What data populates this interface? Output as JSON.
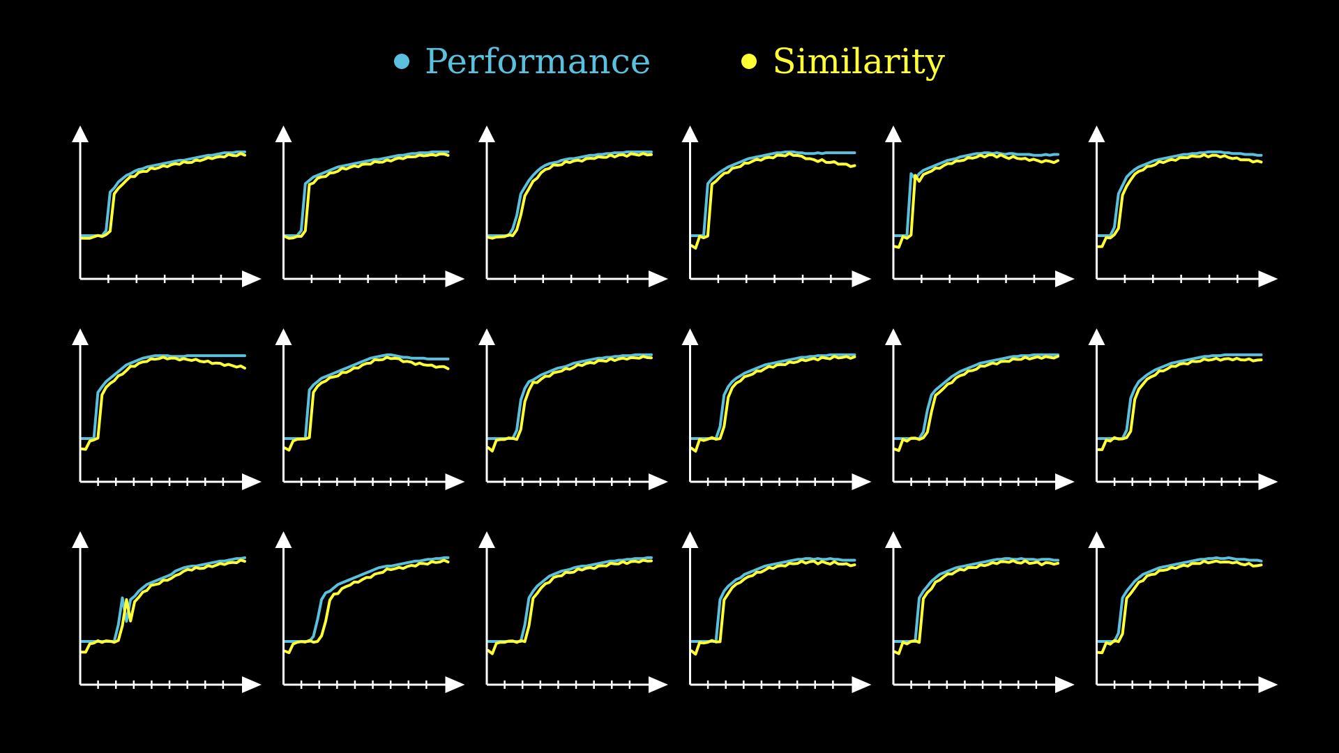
{
  "legend": {
    "performance_label": "Performance",
    "similarity_label": "Similarity"
  },
  "colors": {
    "background": "#000000",
    "axes": "#ffffff",
    "performance": "#5bc0de",
    "similarity": "#ffff33"
  },
  "chart_data": {
    "type": "line",
    "layout": "small-multiples-3x6",
    "ylim": [
      0,
      1
    ],
    "xlim": [
      0,
      40
    ],
    "series_names": [
      "Performance",
      "Similarity"
    ],
    "panels": [
      {
        "shape": [
          0,
          0,
          0,
          0,
          0,
          0,
          0.06,
          0.52,
          0.57,
          0.64,
          0.68,
          0.72,
          0.74,
          0.77,
          0.79,
          0.8,
          0.82,
          0.83,
          0.84,
          0.85,
          0.86,
          0.87,
          0.88,
          0.89,
          0.9,
          0.9,
          0.91,
          0.92,
          0.93,
          0.94,
          0.95,
          0.96,
          0.96,
          0.97,
          0.98,
          0.99,
          0.99,
          0.99,
          1.0,
          1.0,
          1.0
        ],
        "delay": 1,
        "dip": -0.03,
        "dipDepth": 0.04
      },
      {
        "shape": [
          0,
          0,
          0,
          0,
          0.06,
          0.62,
          0.66,
          0.7,
          0.72,
          0.74,
          0.76,
          0.78,
          0.8,
          0.82,
          0.83,
          0.84,
          0.85,
          0.86,
          0.87,
          0.88,
          0.89,
          0.9,
          0.91,
          0.91,
          0.92,
          0.93,
          0.94,
          0.95,
          0.96,
          0.96,
          0.97,
          0.98,
          0.98,
          0.99,
          0.99,
          0.99,
          1.0,
          1.0,
          1.0,
          1.0,
          1.0
        ],
        "delay": 1,
        "dip": -0.02,
        "dipDepth": 0.03
      },
      {
        "shape": [
          0,
          0,
          0,
          0,
          0,
          0,
          0.08,
          0.24,
          0.5,
          0.58,
          0.66,
          0.72,
          0.77,
          0.81,
          0.84,
          0.86,
          0.87,
          0.88,
          0.9,
          0.91,
          0.92,
          0.92,
          0.93,
          0.94,
          0.95,
          0.96,
          0.96,
          0.97,
          0.97,
          0.98,
          0.98,
          0.99,
          0.99,
          0.99,
          1.0,
          1.0,
          1.0,
          1.0,
          1.0,
          1.0,
          1.0
        ],
        "delay": 1,
        "dip": -0.03,
        "dipDepth": 0.02
      },
      {
        "shape": [
          0,
          0,
          0,
          0,
          0.62,
          0.68,
          0.72,
          0.76,
          0.79,
          0.82,
          0.84,
          0.86,
          0.88,
          0.9,
          0.92,
          0.93,
          0.94,
          0.95,
          0.96,
          0.97,
          0.98,
          0.99,
          0.99,
          1.0,
          1.0,
          1.0,
          0.99,
          0.99,
          0.98,
          0.98,
          0.98,
          0.99,
          0.98,
          0.99,
          0.99,
          0.99,
          0.99,
          0.99,
          0.99,
          0.99,
          0.99
        ],
        "delay": 1,
        "dip": -0.12,
        "dipDepth": 0.14,
        "simDrop": 0.14
      },
      {
        "shape": [
          0,
          0,
          0,
          0,
          0.74,
          0.68,
          0.74,
          0.78,
          0.8,
          0.82,
          0.84,
          0.86,
          0.88,
          0.9,
          0.91,
          0.92,
          0.94,
          0.95,
          0.96,
          0.97,
          0.98,
          0.98,
          0.99,
          0.99,
          0.98,
          0.99,
          0.98,
          0.97,
          0.98,
          0.98,
          0.97,
          0.97,
          0.97,
          0.97,
          0.96,
          0.96,
          0.96,
          0.97,
          0.96,
          0.97,
          0.97
        ],
        "delay": 1,
        "dip": -0.12,
        "dipDepth": 0.14,
        "simDrop": 0.06
      },
      {
        "shape": [
          0,
          0,
          0,
          0,
          0.1,
          0.5,
          0.6,
          0.7,
          0.75,
          0.79,
          0.82,
          0.84,
          0.86,
          0.88,
          0.9,
          0.91,
          0.92,
          0.93,
          0.94,
          0.95,
          0.96,
          0.97,
          0.97,
          0.98,
          0.98,
          0.99,
          0.99,
          1.0,
          1.0,
          1.0,
          1.0,
          0.99,
          0.99,
          0.98,
          0.98,
          0.98,
          0.97,
          0.97,
          0.97,
          0.96,
          0.96
        ],
        "delay": 1,
        "dip": -0.12,
        "dipDepth": 0.14,
        "simDrop": 0.06
      },
      {
        "shape": [
          0,
          0,
          0,
          0,
          0.55,
          0.62,
          0.68,
          0.72,
          0.76,
          0.8,
          0.84,
          0.88,
          0.9,
          0.92,
          0.94,
          0.96,
          0.97,
          0.98,
          0.99,
          0.99,
          0.99,
          0.99,
          0.98,
          0.98,
          0.98,
          0.98,
          0.99,
          0.99,
          0.99,
          0.99,
          0.99,
          0.99,
          0.99,
          0.99,
          0.99,
          0.99,
          0.99,
          0.99,
          0.99,
          0.99,
          0.99
        ],
        "delay": 1,
        "dip": -0.12,
        "dipDepth": 0.14,
        "simDrop": 0.12
      },
      {
        "shape": [
          0,
          0,
          0,
          0,
          0,
          0,
          0.58,
          0.64,
          0.68,
          0.72,
          0.74,
          0.76,
          0.78,
          0.8,
          0.82,
          0.84,
          0.86,
          0.88,
          0.9,
          0.92,
          0.94,
          0.96,
          0.97,
          0.98,
          0.99,
          1.0,
          1.0,
          0.99,
          0.98,
          0.97,
          0.97,
          0.96,
          0.96,
          0.96,
          0.96,
          0.95,
          0.95,
          0.95,
          0.95,
          0.95,
          0.95
        ],
        "delay": 1,
        "dip": -0.12,
        "dipDepth": 0.14,
        "simDrop": 0.08
      },
      {
        "shape": [
          0,
          0,
          0,
          0,
          0,
          0,
          0,
          0.1,
          0.46,
          0.6,
          0.68,
          0.7,
          0.73,
          0.76,
          0.78,
          0.8,
          0.82,
          0.84,
          0.85,
          0.86,
          0.88,
          0.9,
          0.91,
          0.92,
          0.93,
          0.94,
          0.95,
          0.96,
          0.96,
          0.97,
          0.97,
          0.98,
          0.98,
          0.99,
          0.99,
          0.99,
          1.0,
          1.0,
          1.0,
          1.0,
          1.0
        ],
        "delay": 1,
        "dip": -0.12,
        "dipDepth": 0.14
      },
      {
        "shape": [
          0,
          0,
          0,
          0,
          0,
          0,
          0,
          0.14,
          0.52,
          0.62,
          0.68,
          0.72,
          0.75,
          0.78,
          0.8,
          0.82,
          0.84,
          0.86,
          0.88,
          0.89,
          0.9,
          0.91,
          0.92,
          0.93,
          0.94,
          0.95,
          0.96,
          0.97,
          0.97,
          0.98,
          0.98,
          0.99,
          0.99,
          0.99,
          1.0,
          1.0,
          1.0,
          1.0,
          1.0,
          1.0,
          1.0
        ],
        "delay": 1,
        "dip": -0.12,
        "dipDepth": 0.14
      },
      {
        "shape": [
          0,
          0,
          0,
          0,
          0,
          0,
          0,
          0.08,
          0.34,
          0.52,
          0.58,
          0.62,
          0.66,
          0.7,
          0.74,
          0.77,
          0.8,
          0.82,
          0.84,
          0.86,
          0.88,
          0.9,
          0.91,
          0.92,
          0.93,
          0.94,
          0.95,
          0.96,
          0.97,
          0.98,
          0.98,
          0.99,
          0.99,
          0.99,
          1.0,
          1.0,
          1.0,
          1.0,
          1.0,
          1.0,
          1.0
        ],
        "delay": 1,
        "dip": -0.12,
        "dipDepth": 0.14
      },
      {
        "shape": [
          0,
          0,
          0,
          0,
          0,
          0,
          0,
          0.1,
          0.48,
          0.6,
          0.68,
          0.72,
          0.76,
          0.79,
          0.82,
          0.84,
          0.86,
          0.88,
          0.9,
          0.91,
          0.92,
          0.93,
          0.94,
          0.95,
          0.96,
          0.97,
          0.98,
          0.98,
          0.99,
          0.99,
          0.99,
          1.0,
          1.0,
          1.0,
          1.0,
          1.0,
          1.0,
          1.0,
          1.0,
          1.0,
          1.0
        ],
        "delay": 1,
        "dip": -0.12,
        "dipDepth": 0.14,
        "simDrop": 0.04
      },
      {
        "shape": [
          0,
          0,
          0,
          0,
          0,
          0,
          0,
          0,
          0,
          0.2,
          0.52,
          0.24,
          0.5,
          0.54,
          0.6,
          0.64,
          0.68,
          0.7,
          0.72,
          0.74,
          0.76,
          0.78,
          0.8,
          0.84,
          0.86,
          0.88,
          0.89,
          0.9,
          0.9,
          0.91,
          0.92,
          0.93,
          0.94,
          0.95,
          0.96,
          0.96,
          0.97,
          0.98,
          0.99,
          0.99,
          1.0
        ],
        "delay": 1,
        "dip": -0.12,
        "dipDepth": 0.14
      },
      {
        "shape": [
          0,
          0,
          0,
          0,
          0,
          0,
          0,
          0.06,
          0.26,
          0.5,
          0.58,
          0.6,
          0.64,
          0.68,
          0.7,
          0.72,
          0.74,
          0.76,
          0.78,
          0.8,
          0.82,
          0.84,
          0.86,
          0.88,
          0.89,
          0.9,
          0.9,
          0.91,
          0.92,
          0.93,
          0.94,
          0.95,
          0.96,
          0.96,
          0.97,
          0.98,
          0.98,
          0.99,
          0.99,
          1.0,
          1.0
        ],
        "delay": 2,
        "dip": -0.12,
        "dipDepth": 0.14
      },
      {
        "shape": [
          0,
          0,
          0,
          0,
          0,
          0,
          0,
          0,
          0,
          0.2,
          0.52,
          0.6,
          0.66,
          0.7,
          0.74,
          0.78,
          0.8,
          0.82,
          0.84,
          0.85,
          0.86,
          0.88,
          0.89,
          0.9,
          0.9,
          0.91,
          0.92,
          0.93,
          0.94,
          0.95,
          0.96,
          0.96,
          0.97,
          0.97,
          0.98,
          0.98,
          0.99,
          0.99,
          0.99,
          1.0,
          1.0
        ],
        "delay": 1,
        "dip": -0.12,
        "dipDepth": 0.14
      },
      {
        "shape": [
          0,
          0,
          0,
          0,
          0,
          0,
          0,
          0.5,
          0.6,
          0.66,
          0.7,
          0.74,
          0.76,
          0.8,
          0.82,
          0.84,
          0.86,
          0.88,
          0.9,
          0.91,
          0.92,
          0.93,
          0.94,
          0.95,
          0.96,
          0.97,
          0.98,
          0.98,
          0.99,
          0.99,
          0.98,
          0.99,
          0.98,
          0.98,
          0.99,
          0.98,
          0.98,
          0.97,
          0.97,
          0.97,
          0.97
        ],
        "delay": 1,
        "dip": -0.12,
        "dipDepth": 0.14,
        "simDrop": 0.03
      },
      {
        "shape": [
          0,
          0,
          0,
          0,
          0,
          0,
          0.52,
          0.6,
          0.66,
          0.72,
          0.76,
          0.8,
          0.82,
          0.84,
          0.86,
          0.88,
          0.89,
          0.9,
          0.91,
          0.92,
          0.93,
          0.94,
          0.95,
          0.96,
          0.97,
          0.98,
          0.98,
          0.99,
          0.99,
          0.98,
          0.98,
          0.99,
          0.98,
          0.98,
          0.98,
          0.97,
          0.98,
          0.98,
          0.98,
          0.97,
          0.97
        ],
        "delay": 1,
        "dip": -0.12,
        "dipDepth": 0.14,
        "simDrop": 0.02
      },
      {
        "shape": [
          0,
          0,
          0,
          0,
          0,
          0.1,
          0.52,
          0.6,
          0.66,
          0.72,
          0.76,
          0.8,
          0.82,
          0.84,
          0.86,
          0.88,
          0.89,
          0.9,
          0.91,
          0.92,
          0.93,
          0.94,
          0.95,
          0.96,
          0.97,
          0.98,
          0.98,
          0.99,
          0.99,
          1.0,
          0.99,
          0.99,
          1.0,
          0.99,
          0.98,
          0.98,
          0.98,
          0.97,
          0.97,
          0.97,
          0.96
        ],
        "delay": 1,
        "dip": -0.12,
        "dipDepth": 0.14,
        "simDrop": 0.04
      }
    ]
  }
}
